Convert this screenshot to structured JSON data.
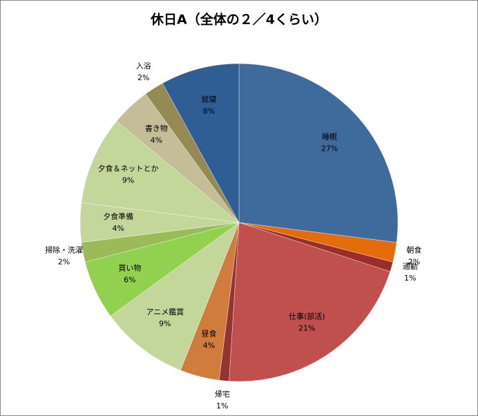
{
  "chart_data": {
    "type": "pie",
    "title": "休日A（全体の２／4くらい）",
    "categories": [
      "睡眠",
      "朝食",
      "通勤",
      "仕事(部活)",
      "帰宅",
      "昼食",
      "アニメ鑑賞",
      "買い物",
      "掃除・洗濯",
      "夕食準備",
      "夕食＆ネットとか",
      "書き物",
      "入浴",
      "就寝"
    ],
    "values": [
      27,
      2,
      1,
      21,
      1,
      4,
      9,
      6,
      2,
      4,
      9,
      4,
      2,
      8
    ],
    "value_labels": [
      "27%",
      "2%",
      "1%",
      "21%",
      "1%",
      "4%",
      "9%",
      "6%",
      "2%",
      "4%",
      "9%",
      "4%",
      "2%",
      "8%"
    ],
    "colors": [
      "#3f6a9c",
      "#e46c0a",
      "#9b2d2a",
      "#c0504d",
      "#953532",
      "#d17c3c",
      "#c4d79b",
      "#92d050",
      "#9bbb59",
      "#c4d79b",
      "#c4d79b",
      "#c4bd97",
      "#948a54",
      "#2f5e94"
    ]
  }
}
